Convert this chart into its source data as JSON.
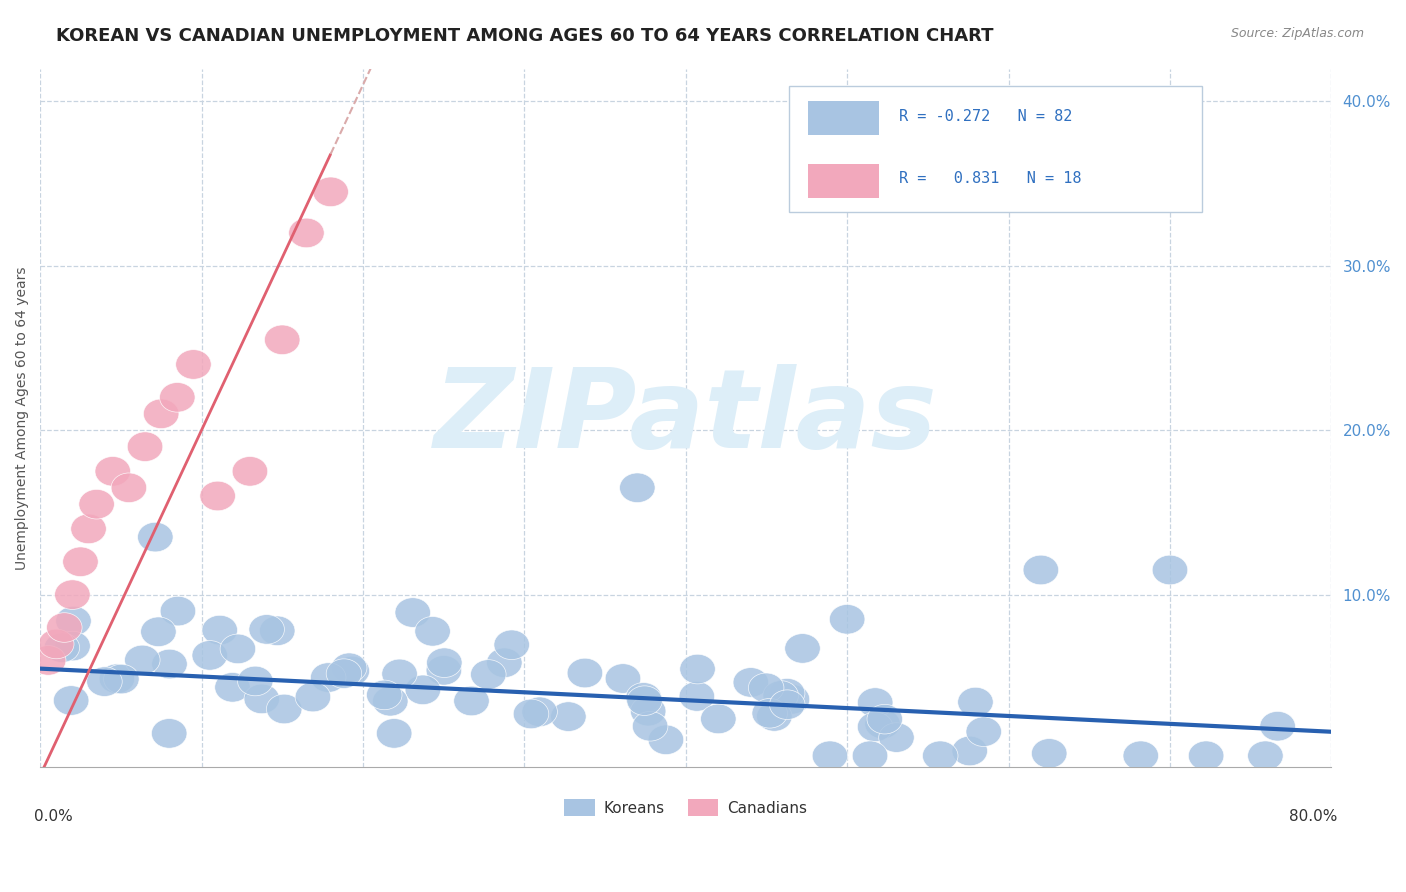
{
  "title": "KOREAN VS CANADIAN UNEMPLOYMENT AMONG AGES 60 TO 64 YEARS CORRELATION CHART",
  "source": "Source: ZipAtlas.com",
  "ylabel": "Unemployment Among Ages 60 to 64 years",
  "ytick_positions": [
    0.1,
    0.2,
    0.3,
    0.4
  ],
  "ytick_labels": [
    "10.0%",
    "20.0%",
    "30.0%",
    "40.0%"
  ],
  "xlim": [
    0.0,
    0.8
  ],
  "ylim": [
    -0.005,
    0.42
  ],
  "korean_color": "#a8c4e2",
  "canadian_color": "#f2a8bc",
  "korean_line_color": "#2860b0",
  "canadian_line_color": "#e06070",
  "canadian_dash_color": "#daaaaa",
  "grid_color": "#c8d4e0",
  "background_color": "#ffffff",
  "watermark_zip": "ZIP",
  "watermark_atlas": "atlas",
  "watermark_color": "#ddeef8",
  "title_fontsize": 13,
  "source_fontsize": 9,
  "ytick_fontsize": 11,
  "legend_fontsize": 11,
  "korean_trend_intercept": 0.055,
  "korean_trend_slope": -0.048,
  "canadian_trend_intercept": -0.01,
  "canadian_trend_slope": 2.1,
  "korean_N": 82,
  "canadian_N": 18,
  "korean_R": -0.272,
  "canadian_R": 0.831
}
